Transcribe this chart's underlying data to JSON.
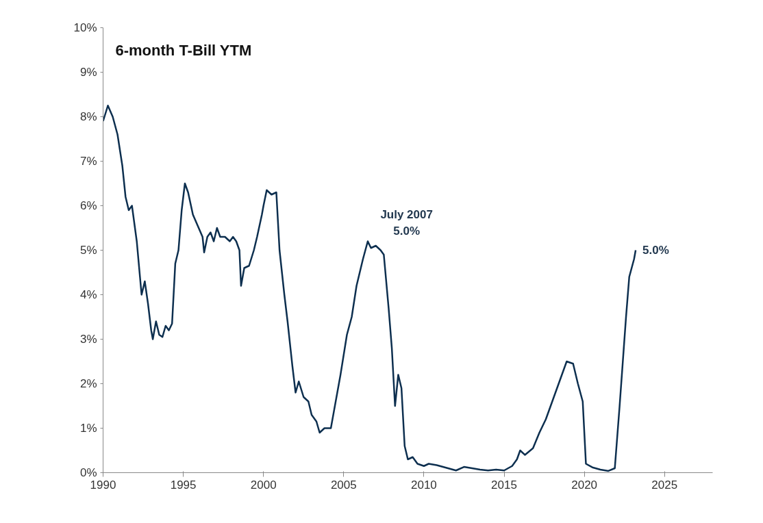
{
  "chart_data": {
    "type": "line",
    "title": "6-month T-Bill YTM",
    "x": [
      1990.0,
      1990.3,
      1990.6,
      1990.9,
      1991.2,
      1991.4,
      1991.6,
      1991.8,
      1992.1,
      1992.3,
      1992.4,
      1992.6,
      1992.8,
      1993.0,
      1993.1,
      1993.3,
      1993.5,
      1993.7,
      1993.9,
      1994.1,
      1994.3,
      1994.5,
      1994.7,
      1994.9,
      1995.1,
      1995.3,
      1995.6,
      1995.9,
      1996.2,
      1996.3,
      1996.5,
      1996.7,
      1996.9,
      1997.1,
      1997.3,
      1997.6,
      1997.9,
      1998.1,
      1998.3,
      1998.5,
      1998.6,
      1998.8,
      1999.1,
      1999.4,
      1999.6,
      1999.9,
      2000.0,
      2000.2,
      2000.5,
      2000.8,
      2001.0,
      2001.3,
      2001.5,
      2001.8,
      2002.0,
      2002.2,
      2002.5,
      2002.8,
      2003.0,
      2003.3,
      2003.5,
      2003.8,
      2004.2,
      2004.5,
      2004.8,
      2005.2,
      2005.5,
      2005.8,
      2006.2,
      2006.5,
      2006.7,
      2007.0,
      2007.3,
      2007.5,
      2007.8,
      2008.0,
      2008.2,
      2008.4,
      2008.6,
      2008.8,
      2009.0,
      2009.3,
      2009.6,
      2010.0,
      2010.3,
      2010.8,
      2011.5,
      2012.0,
      2012.5,
      2013.0,
      2013.5,
      2014.0,
      2014.5,
      2015.0,
      2015.5,
      2015.8,
      2016.0,
      2016.3,
      2016.8,
      2017.2,
      2017.6,
      2018.0,
      2018.5,
      2018.9,
      2019.3,
      2019.6,
      2019.9,
      2020.1,
      2020.5,
      2021.0,
      2021.5,
      2021.9,
      2022.2,
      2022.6,
      2022.8,
      2023.1,
      2023.2
    ],
    "series": [
      {
        "color": "#0d2f4f",
        "values": [
          7.9,
          8.25,
          8.0,
          7.6,
          6.9,
          6.2,
          5.9,
          6.0,
          5.2,
          4.4,
          4.0,
          4.3,
          3.8,
          3.2,
          3.0,
          3.4,
          3.1,
          3.05,
          3.3,
          3.2,
          3.35,
          4.7,
          5.0,
          5.9,
          6.5,
          6.3,
          5.8,
          5.55,
          5.3,
          4.95,
          5.3,
          5.4,
          5.2,
          5.5,
          5.3,
          5.3,
          5.2,
          5.3,
          5.2,
          5.0,
          4.2,
          4.6,
          4.65,
          5.0,
          5.3,
          5.8,
          6.0,
          6.35,
          6.25,
          6.3,
          5.0,
          4.0,
          3.4,
          2.4,
          1.8,
          2.05,
          1.7,
          1.6,
          1.3,
          1.15,
          0.9,
          1.0,
          1.0,
          1.6,
          2.2,
          3.1,
          3.5,
          4.2,
          4.8,
          5.2,
          5.05,
          5.1,
          5.0,
          4.9,
          3.7,
          2.8,
          1.5,
          2.2,
          1.9,
          0.6,
          0.3,
          0.35,
          0.2,
          0.15,
          0.2,
          0.17,
          0.1,
          0.05,
          0.13,
          0.1,
          0.07,
          0.05,
          0.07,
          0.05,
          0.15,
          0.3,
          0.5,
          0.4,
          0.55,
          0.9,
          1.2,
          1.6,
          2.1,
          2.5,
          2.45,
          2.0,
          1.6,
          0.2,
          0.12,
          0.07,
          0.04,
          0.1,
          1.5,
          3.5,
          4.4,
          4.8,
          5.0
        ]
      }
    ],
    "annotations": [
      "July 2007",
      "5.0%",
      "5.0%"
    ],
    "xlim": [
      1990,
      2028
    ],
    "xticks": [
      1990,
      1995,
      2000,
      2005,
      2010,
      2015,
      2020,
      2025
    ],
    "ylim": [
      0,
      10
    ],
    "yticks": [
      {
        "value": 0,
        "label": "0%"
      },
      {
        "value": 1,
        "label": "1%"
      },
      {
        "value": 2,
        "label": "2%"
      },
      {
        "value": 3,
        "label": "3%"
      },
      {
        "value": 4,
        "label": "4%"
      },
      {
        "value": 5,
        "label": "5%"
      },
      {
        "value": 6,
        "label": "6%"
      },
      {
        "value": 7,
        "label": "7%"
      },
      {
        "value": 8,
        "label": "8%"
      },
      {
        "value": 9,
        "label": "9%"
      },
      {
        "value": 10,
        "label": "10%"
      }
    ],
    "grid": false
  }
}
